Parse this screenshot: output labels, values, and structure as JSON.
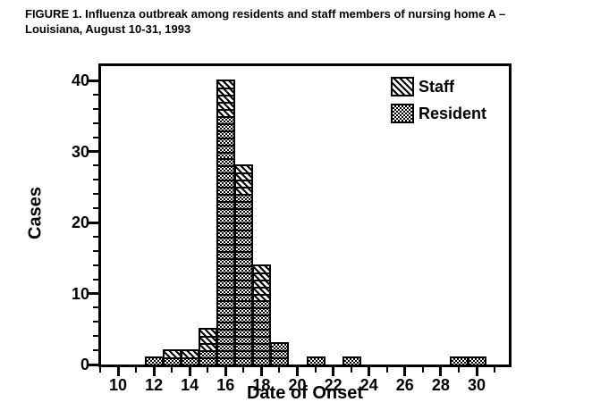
{
  "title": {
    "line1": "FIGURE 1.  Influenza outbreak among residents and staff members of nursing home A –",
    "line2": "Louisiana, August 10-31, 1993"
  },
  "legend": {
    "staff_label": "Staff",
    "resident_label": "Resident"
  },
  "colors": {
    "ink": "#000000",
    "background": "#ffffff"
  },
  "chart_data": {
    "type": "bar",
    "stacked": true,
    "title": "FIGURE 1. Influenza outbreak among residents and staff members of nursing home A – Louisiana, August 10-31, 1993",
    "xlabel": "Date of Onset",
    "ylabel": "Cases",
    "x_range": [
      9,
      32
    ],
    "ylim": [
      0,
      42
    ],
    "yticks": [
      0,
      10,
      20,
      30,
      40
    ],
    "y_minor_step": 2,
    "xticks_labeled": [
      10,
      12,
      14,
      16,
      18,
      20,
      22,
      24,
      26,
      28,
      30
    ],
    "xticks_minor_step": 1,
    "grid": false,
    "legend_position": "upper-right-inside",
    "series": [
      {
        "name": "Staff",
        "pattern": "diagonal-hatch"
      },
      {
        "name": "Resident",
        "pattern": "dot-screen"
      }
    ],
    "bars": [
      {
        "day": 12,
        "resident": 1,
        "staff": 0
      },
      {
        "day": 13,
        "resident": 1,
        "staff": 1
      },
      {
        "day": 14,
        "resident": 1,
        "staff": 1
      },
      {
        "day": 15,
        "resident": 2,
        "staff": 3
      },
      {
        "day": 16,
        "resident": 35,
        "staff": 5
      },
      {
        "day": 17,
        "resident": 24,
        "staff": 4
      },
      {
        "day": 18,
        "resident": 9,
        "staff": 5
      },
      {
        "day": 19,
        "resident": 3,
        "staff": 0
      },
      {
        "day": 21,
        "resident": 1,
        "staff": 0
      },
      {
        "day": 23,
        "resident": 1,
        "staff": 0
      },
      {
        "day": 29,
        "resident": 1,
        "staff": 0
      },
      {
        "day": 30,
        "resident": 1,
        "staff": 0
      }
    ]
  }
}
